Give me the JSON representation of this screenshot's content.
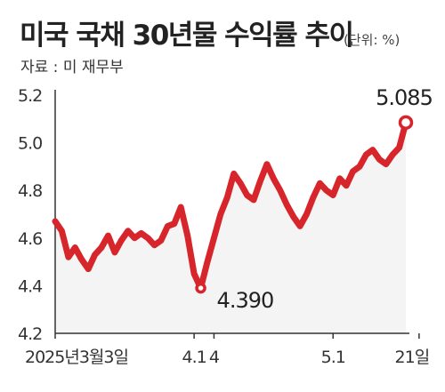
{
  "header": {
    "title": "미국 국채 30년물 수익률 추이",
    "unit": "(단위: %)",
    "source": "자료 : 미 재무부"
  },
  "chart_data": {
    "type": "line",
    "title": "미국 국채 30년물 수익률 추이",
    "unit_label": "(단위: %)",
    "source": "자료 : 미 재무부",
    "ylim": [
      4.2,
      5.2
    ],
    "y_ticks": [
      "4.2",
      "4.4",
      "4.6",
      "4.8",
      "5.0",
      "5.2"
    ],
    "x_ticks": [
      {
        "label": "2025년3월3일",
        "index": 0
      },
      {
        "label": "4.1",
        "index": 21
      },
      {
        "label": "4",
        "index": 24
      },
      {
        "label": "5.1",
        "index": 42
      },
      {
        "label": "21일",
        "index": 55
      }
    ],
    "series": [
      {
        "color": "#d7262b",
        "values": [
          4.67,
          4.63,
          4.52,
          4.56,
          4.51,
          4.47,
          4.53,
          4.56,
          4.61,
          4.54,
          4.59,
          4.63,
          4.6,
          4.62,
          4.6,
          4.57,
          4.59,
          4.65,
          4.66,
          4.73,
          4.61,
          4.45,
          4.39,
          4.5,
          4.6,
          4.7,
          4.77,
          4.87,
          4.83,
          4.78,
          4.76,
          4.84,
          4.91,
          4.85,
          4.8,
          4.74,
          4.69,
          4.65,
          4.7,
          4.77,
          4.83,
          4.8,
          4.78,
          4.85,
          4.82,
          4.88,
          4.9,
          4.95,
          4.97,
          4.93,
          4.91,
          4.95,
          4.98,
          5.085
        ]
      }
    ],
    "annotations": [
      {
        "label": "4.390",
        "index": 22,
        "value": 4.39
      },
      {
        "label": "5.085",
        "index": 53,
        "value": 5.085
      }
    ],
    "grid": false,
    "area_fill": "#f4f4f4"
  }
}
